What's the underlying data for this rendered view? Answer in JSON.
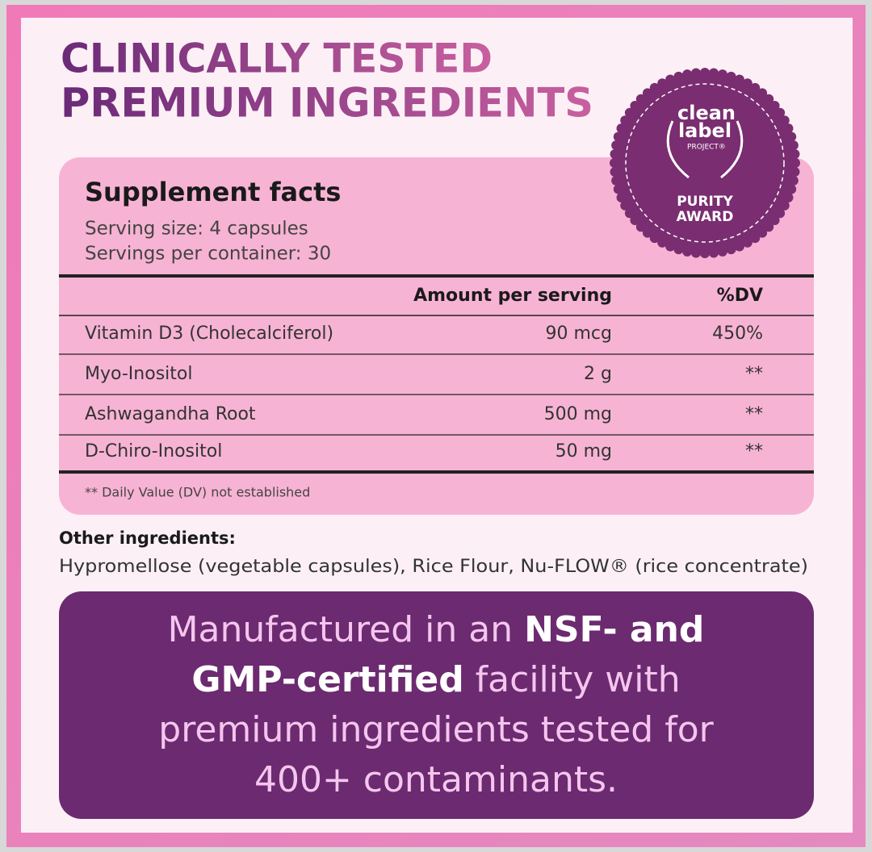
{
  "header": {
    "title_lines": [
      "CLINICALLY TESTED",
      "PREMIUM INGREDIENTS"
    ]
  },
  "badge": {
    "lines": [
      "clean",
      "label",
      "PROJECT®"
    ],
    "award": [
      "PURITY",
      "AWARD"
    ]
  },
  "facts": {
    "title": "Supplement facts",
    "serving_size": "Serving size: 4 capsules",
    "servings_per_container": "Servings per container: 30",
    "table": {
      "columns": [
        "Amount per serving",
        "%DV"
      ],
      "rows": [
        [
          "Vitamin D3 (Cholecalciferol)",
          "90 mcg",
          "450%"
        ],
        [
          "Myo-Inositol",
          "2 g",
          "**"
        ],
        [
          "Ashwagandha Root",
          "500 mg",
          "**"
        ],
        [
          "D-Chiro-Inositol",
          "50 mg",
          "**"
        ]
      ]
    },
    "footnote": "** Daily Value (DV) not established"
  },
  "other_ingredients": {
    "label": "Other ingredients:",
    "text": "Hypromellose (vegetable capsules), Rice Flour, Nu-FLOW® (rice concentrate)"
  },
  "banner": {
    "lines": [
      [
        {
          "text": "Manufactured in an ",
          "bold": false
        },
        {
          "text": "NSF- and",
          "bold": true
        }
      ],
      [
        {
          "text": "GMP-certified",
          "bold": true
        },
        {
          "text": " facility with",
          "bold": false
        }
      ],
      [
        {
          "text": "premium ingredients tested for",
          "bold": false
        }
      ],
      [
        {
          "text": "400+ contaminants.",
          "bold": false
        }
      ]
    ]
  }
}
